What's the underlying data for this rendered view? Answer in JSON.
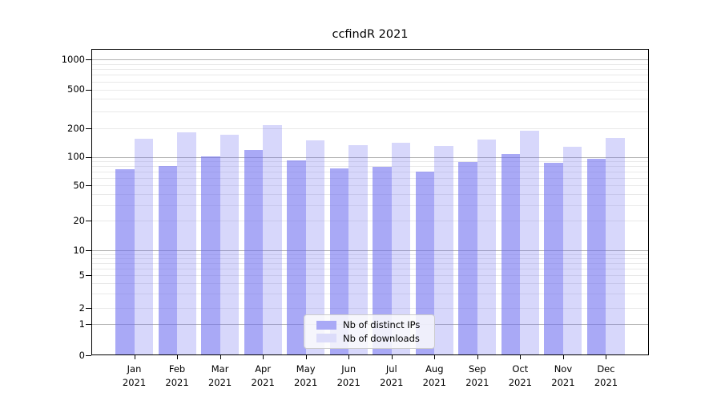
{
  "chart": {
    "title": "ccfindR 2021",
    "legend": {
      "items": [
        {
          "label": "Nb of distinct IPs"
        },
        {
          "label": "Nb of downloads"
        }
      ]
    },
    "colors": {
      "ips_bar": "rgba(106,106,240,0.58)",
      "downloads_bar": "rgba(106,106,240,0.27)",
      "ips_swatch": "#a9a9f6",
      "downloads_swatch": "#dcdcfa",
      "grid_major": "#b2b2b2",
      "grid_minor": "#e9e9e9",
      "axis": "#000000"
    }
  },
  "chart_data": {
    "type": "bar",
    "title": "ccfindR 2021",
    "categories": [
      "Jan 2021",
      "Feb 2021",
      "Mar 2021",
      "Apr 2021",
      "May 2021",
      "Jun 2021",
      "Jul 2021",
      "Aug 2021",
      "Sep 2021",
      "Oct 2021",
      "Nov 2021",
      "Dec 2021"
    ],
    "series": [
      {
        "name": "Nb of distinct IPs",
        "values": [
          73,
          78,
          100,
          115,
          89,
          74,
          77,
          69,
          86,
          105,
          84,
          94
        ]
      },
      {
        "name": "Nb of downloads",
        "values": [
          153,
          178,
          169,
          211,
          146,
          130,
          137,
          127,
          149,
          186,
          124,
          154
        ]
      }
    ],
    "xlabel": "",
    "ylabel": "",
    "yscale": "log1p-like",
    "yticks": [
      0,
      1,
      2,
      5,
      10,
      20,
      50,
      100,
      200,
      500,
      1000
    ],
    "minor_gridlines": [
      3,
      4,
      6,
      7,
      8,
      9,
      30,
      40,
      60,
      70,
      80,
      90,
      300,
      400,
      600,
      700,
      800,
      900
    ],
    "decade_gridlines": [
      1,
      10,
      100,
      1000
    ],
    "ylim": [
      0,
      1300
    ],
    "grid": true,
    "legend_position": "lower center"
  }
}
